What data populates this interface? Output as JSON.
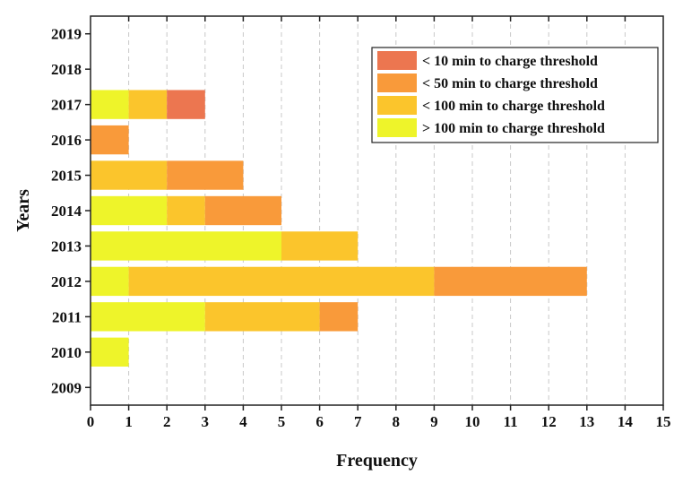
{
  "chart_data": {
    "type": "bar",
    "orientation": "horizontal",
    "stacked": true,
    "title": "",
    "xlabel": "Frequency",
    "ylabel": "Years",
    "xlim": [
      0,
      15
    ],
    "x_ticks": [
      "0",
      "1",
      "2",
      "3",
      "4",
      "5",
      "6",
      "7",
      "8",
      "9",
      "10",
      "11",
      "12",
      "13",
      "14",
      "15"
    ],
    "categories": [
      "2009",
      "2010",
      "2011",
      "2012",
      "2013",
      "2014",
      "2015",
      "2016",
      "2017",
      "2018",
      "2019"
    ],
    "grid": "vertical dashed",
    "legend_position": "top-right",
    "series": [
      {
        "name": "> 100 min to charge threshold",
        "color": "#eef42a",
        "values": [
          0,
          1,
          3,
          1,
          5,
          2,
          0,
          0,
          1,
          0,
          0
        ]
      },
      {
        "name": "< 100 min to charge threshold",
        "color": "#fbc52c",
        "values": [
          0,
          0,
          3,
          8,
          2,
          1,
          2,
          0,
          1,
          0,
          0
        ]
      },
      {
        "name": "< 50 min to charge threshold",
        "color": "#f99a3a",
        "values": [
          0,
          0,
          1,
          4,
          0,
          2,
          2,
          1,
          0,
          0,
          0
        ]
      },
      {
        "name": "< 10 min to charge threshold",
        "color": "#ec7650",
        "values": [
          0,
          0,
          0,
          0,
          0,
          0,
          0,
          0,
          1,
          0,
          0
        ]
      }
    ],
    "legend_order": [
      3,
      2,
      1,
      0
    ]
  }
}
